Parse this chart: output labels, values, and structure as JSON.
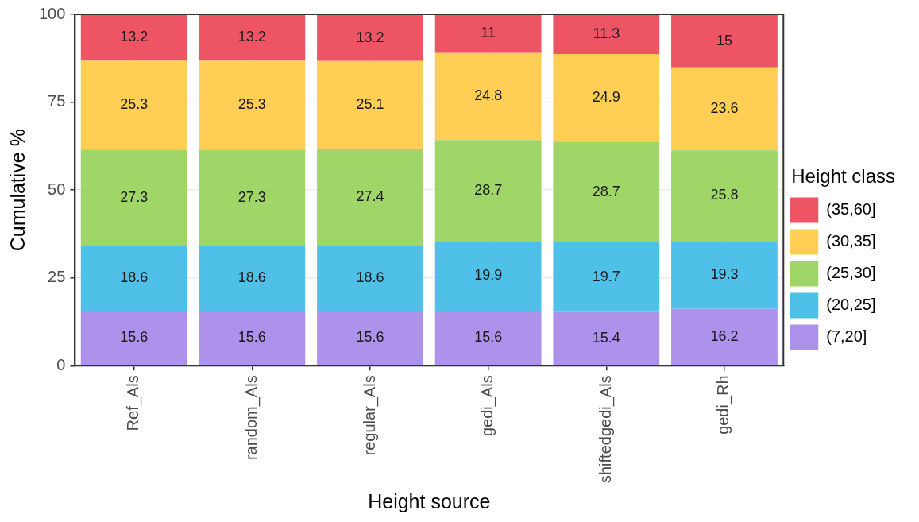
{
  "chart_data": {
    "type": "bar",
    "stacked": true,
    "xlabel": "Height source",
    "ylabel": "Cumulative %",
    "legend_title": "Height class",
    "legend": "right",
    "grid": true,
    "data_labels": true,
    "categories": [
      "Ref_Als",
      "random_Als",
      "regular_Als",
      "gedi_Als",
      "shiftedgedi_Als",
      "gedi_Rh"
    ],
    "ylim": [
      0,
      100
    ],
    "yticks": [
      0,
      25,
      50,
      75,
      100
    ],
    "series": [
      {
        "name": "(7,20]",
        "color": "#ac92eb",
        "values": [
          15.6,
          15.6,
          15.6,
          15.6,
          15.4,
          16.2
        ]
      },
      {
        "name": "(20,25]",
        "color": "#4fc1e8",
        "values": [
          18.6,
          18.6,
          18.6,
          19.9,
          19.7,
          19.3
        ]
      },
      {
        "name": "(25,30]",
        "color": "#a0d568",
        "values": [
          27.3,
          27.3,
          27.4,
          28.7,
          28.7,
          25.8
        ]
      },
      {
        "name": "(30,35]",
        "color": "#ffce54",
        "values": [
          25.3,
          25.3,
          25.1,
          24.8,
          24.9,
          23.6
        ]
      },
      {
        "name": "(35,60]",
        "color": "#ed5565",
        "values": [
          13.2,
          13.2,
          13.2,
          11,
          11.3,
          15
        ]
      }
    ]
  }
}
